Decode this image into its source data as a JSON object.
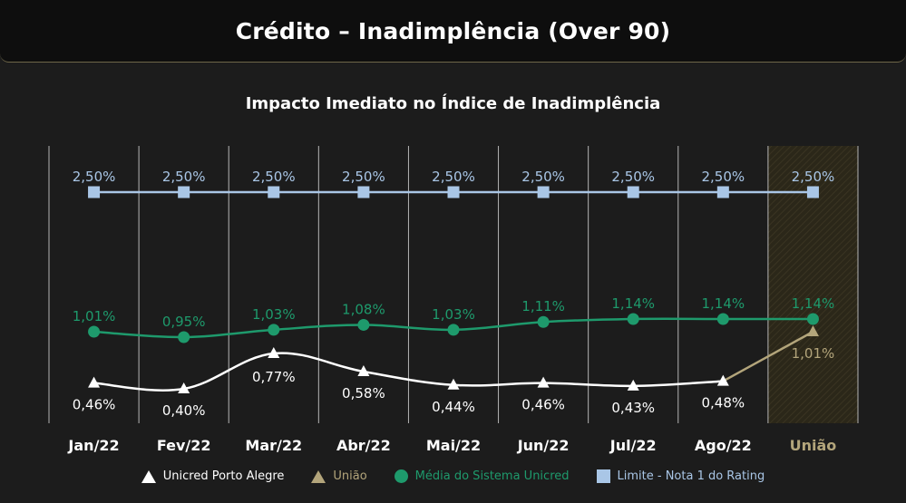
{
  "header": {
    "title": "Crédito – Inadimplência (Over 90)"
  },
  "chart_data": {
    "type": "line",
    "title": "Impacto Imediato no Índice de Inadimplência",
    "categories": [
      "Jan/22",
      "Fev/22",
      "Mar/22",
      "Abr/22",
      "Mai/22",
      "Jun/22",
      "Jul/22",
      "Ago/22",
      "União"
    ],
    "highlight_category": "União",
    "grid": true,
    "series": [
      {
        "key": "unicred_poa",
        "name": "Unicred Porto Alegre",
        "marker": "triangle",
        "color": "#ffffff",
        "values": [
          0.46,
          0.4,
          0.77,
          0.58,
          0.44,
          0.46,
          0.43,
          0.48,
          null
        ],
        "labels": [
          "0,46%",
          "0,40%",
          "0,77%",
          "0,58%",
          "0,44%",
          "0,46%",
          "0,43%",
          "0,48%",
          ""
        ]
      },
      {
        "key": "uniao",
        "name": "União",
        "marker": "triangle",
        "color": "#b3a57b",
        "values": [
          null,
          null,
          null,
          null,
          null,
          null,
          null,
          0.48,
          1.01
        ],
        "labels": [
          "",
          "",
          "",
          "",
          "",
          "",
          "",
          "",
          "1,01%"
        ]
      },
      {
        "key": "media_sistema",
        "name": "Média do Sistema Unicred",
        "marker": "circle",
        "color": "#1e9a6c",
        "values": [
          1.01,
          0.95,
          1.03,
          1.08,
          1.03,
          1.11,
          1.14,
          1.14,
          1.14
        ],
        "labels": [
          "1,01%",
          "0,95%",
          "1,03%",
          "1,08%",
          "1,03%",
          "1,11%",
          "1,14%",
          "1,14%",
          "1,14%"
        ]
      },
      {
        "key": "limite",
        "name": "Limite - Nota 1 do Rating",
        "marker": "square",
        "color": "#a9c6e6",
        "values": [
          2.5,
          2.5,
          2.5,
          2.5,
          2.5,
          2.5,
          2.5,
          2.5,
          2.5
        ],
        "labels": [
          "2,50%",
          "2,50%",
          "2,50%",
          "2,50%",
          "2,50%",
          "2,50%",
          "2,50%",
          "2,50%",
          "2,50%"
        ]
      }
    ]
  },
  "legend": {
    "items": [
      {
        "label": "Unicred Porto Alegre",
        "marker": "triangle",
        "color": "#ffffff"
      },
      {
        "label": "União",
        "marker": "triangle",
        "color": "#b3a57b"
      },
      {
        "label": "Média do Sistema Unicred",
        "marker": "circle",
        "color": "#1e9a6c"
      },
      {
        "label": "Limite - Nota 1 do Rating",
        "marker": "square",
        "color": "#a9c6e6"
      }
    ]
  },
  "colors": {
    "background": "#1c1c1c",
    "grid": "#d0d0d0",
    "highlight_fill": "#2e2a1c",
    "highlight_text": "#b3a57b",
    "axis_text": "#ffffff"
  }
}
